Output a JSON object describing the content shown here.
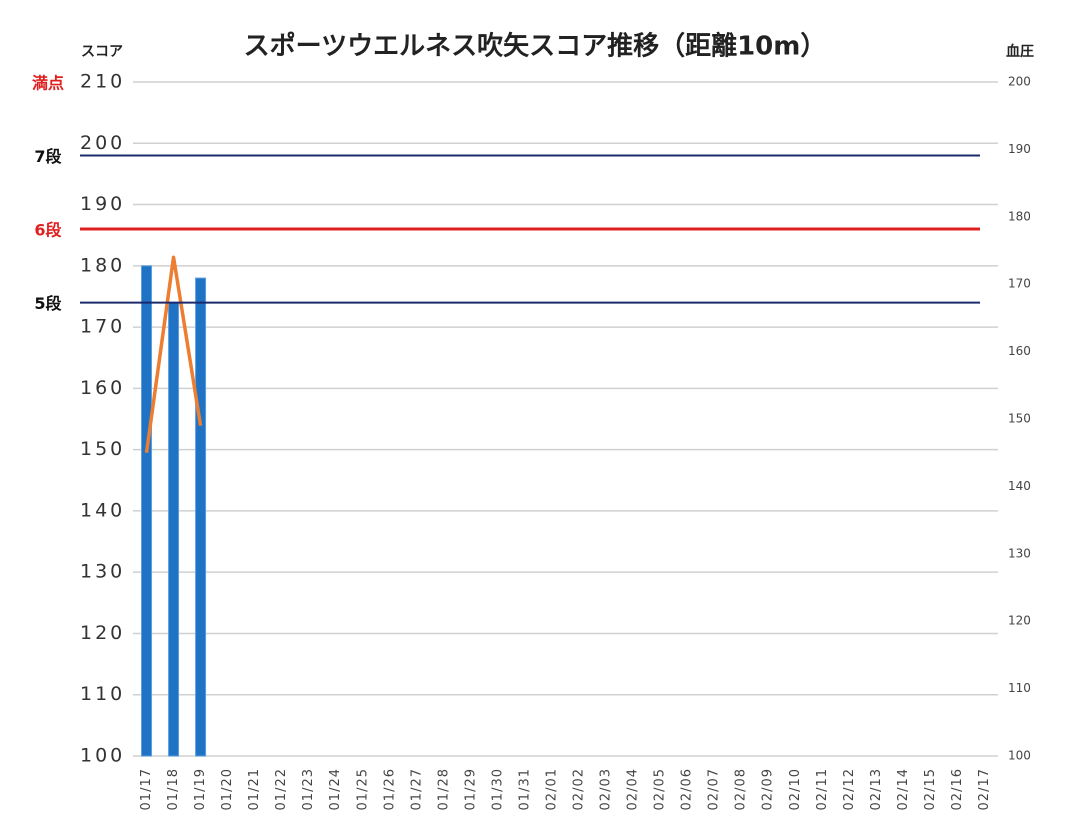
{
  "chart_data": {
    "type": "bar",
    "title": "スポーツウエルネス吹矢スコア推移（距離10m）",
    "y_label": "スコア",
    "y2_label": "血圧",
    "categories": [
      "01/17",
      "01/18",
      "01/19",
      "01/20",
      "01/21",
      "01/22",
      "01/23",
      "01/24",
      "01/25",
      "01/26",
      "01/27",
      "01/28",
      "01/29",
      "01/30",
      "01/31",
      "02/01",
      "02/02",
      "02/03",
      "02/04",
      "02/05",
      "02/06",
      "02/07",
      "02/08",
      "02/09",
      "02/10",
      "02/11",
      "02/12",
      "02/13",
      "02/14",
      "02/15",
      "02/16",
      "02/17"
    ],
    "series": [
      {
        "name": "スコア",
        "type": "bar",
        "color": "#1f72c4",
        "values": [
          180,
          174,
          178,
          null,
          null,
          null,
          null,
          null,
          null,
          null,
          null,
          null,
          null,
          null,
          null,
          null,
          null,
          null,
          null,
          null,
          null,
          null,
          null,
          null,
          null,
          null,
          null,
          null,
          null,
          null,
          null,
          null
        ]
      },
      {
        "name": "血圧",
        "type": "line",
        "axis": "y2",
        "color": "#ed7d31",
        "values": [
          145,
          174,
          149,
          null,
          null,
          null,
          null,
          null,
          null,
          null,
          null,
          null,
          null,
          null,
          null,
          null,
          null,
          null,
          null,
          null,
          null,
          null,
          null,
          null,
          null,
          null,
          null,
          null,
          null,
          null,
          null,
          null
        ]
      }
    ],
    "reference_lines": [
      {
        "label": "満点",
        "value": 210,
        "label_color": "#e02020",
        "show_line": false
      },
      {
        "label": "7段",
        "value": 198,
        "label_color": "#111111",
        "color": "#1a2a6c",
        "show_line": true
      },
      {
        "label": "6段",
        "value": 186,
        "label_color": "#e02020",
        "color": "#e02020",
        "show_line": true
      },
      {
        "label": "5段",
        "value": 174,
        "label_color": "#111111",
        "color": "#1a2a6c",
        "show_line": true
      }
    ],
    "ylim": [
      100,
      210
    ],
    "yticks": [
      100,
      110,
      120,
      130,
      140,
      150,
      160,
      170,
      180,
      190,
      200,
      210
    ],
    "y2lim": [
      100,
      200
    ],
    "y2ticks": [
      100,
      110,
      120,
      130,
      140,
      150,
      160,
      170,
      180,
      190,
      200
    ],
    "grid": true
  }
}
